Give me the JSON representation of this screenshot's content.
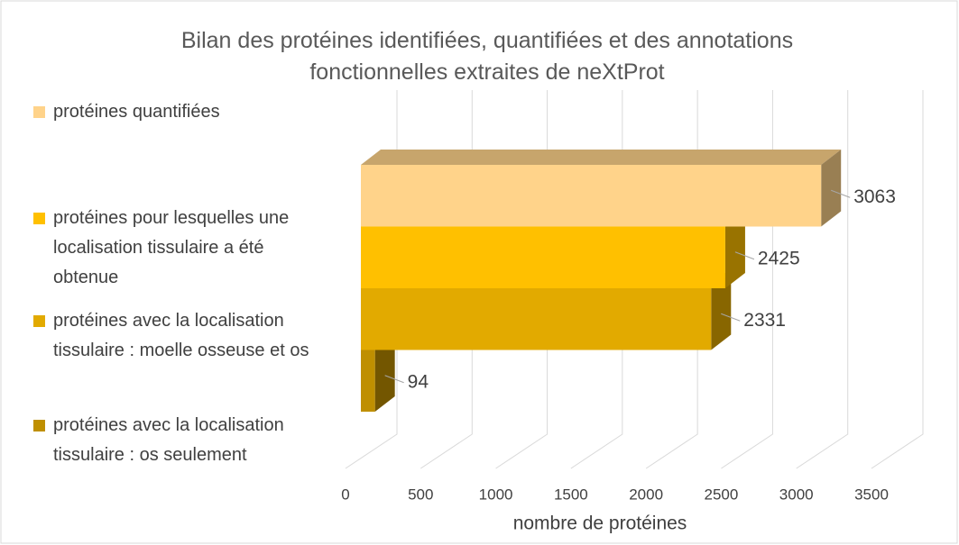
{
  "chart_data": {
    "type": "bar3d",
    "title": "Bilan des protéines identifiées, quantifiées et des annotations fonctionnelles extraites de neXtProt",
    "x_label": "nombre de protéines",
    "series": [
      {
        "name": "protéines quantifiées",
        "color": "#FFD38A",
        "values": [
          3063
        ]
      },
      {
        "name": "protéines pour lesquelles une localisation tissulaire a été obtenue",
        "color": "#FFC000",
        "values": [
          2425
        ]
      },
      {
        "name": "protéines avec la localisation tissulaire : moelle osseuse et os",
        "color": "#E2AA00",
        "values": [
          2331
        ]
      },
      {
        "name": "protéines avec la localisation tissulaire : os seulement",
        "color": "#BF8F00",
        "values": [
          94
        ]
      }
    ],
    "xlim": [
      0,
      3500
    ],
    "xticks": [
      0,
      500,
      1000,
      1500,
      2000,
      2500,
      3000,
      3500
    ],
    "grid": true,
    "legend": "left"
  }
}
